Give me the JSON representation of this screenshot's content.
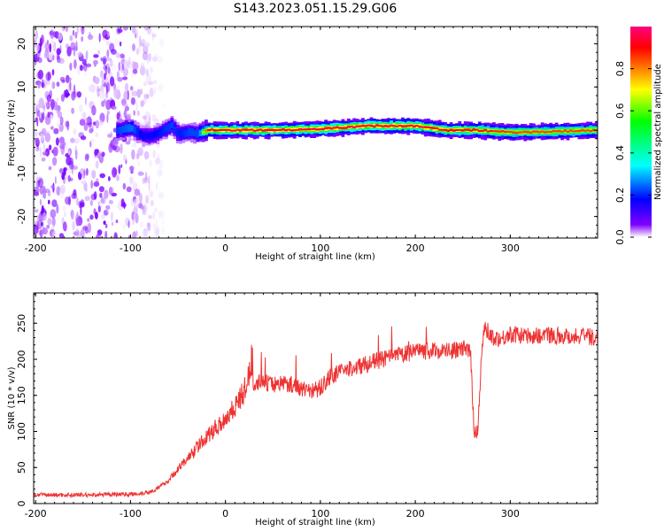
{
  "title": "S143.2023.051.15.29.G06",
  "chart_data": [
    {
      "type": "heatmap",
      "xlabel": "Height of straight line (km)",
      "ylabel": "Frequency (Hz)",
      "xlim": [
        -202,
        392
      ],
      "ylim": [
        -25,
        24
      ],
      "xticks": [
        -200,
        -100,
        0,
        100,
        200,
        300
      ],
      "yticks": [
        -20,
        -10,
        0,
        10,
        20
      ],
      "colorbar": {
        "label": "Normalized spectral amplitude",
        "range": [
          0,
          1
        ],
        "ticks": [
          "0.0",
          "0.2",
          "0.4",
          "0.6",
          "0.8"
        ],
        "colors": [
          "#ffffff",
          "#8000ff",
          "#0000ff",
          "#00ffff",
          "#00ff00",
          "#ffff00",
          "#ff8000",
          "#ff0000",
          "#ff0080"
        ]
      },
      "noise_region_km": [
        -200,
        -110
      ],
      "ridge": {
        "x_km": [
          -115,
          -100,
          -90,
          -80,
          -70,
          -58,
          -50,
          -40,
          -30,
          -20,
          0,
          50,
          100,
          150,
          200,
          230,
          260,
          300,
          350,
          392
        ],
        "freq_hz": [
          0.0,
          0.5,
          -1.2,
          -1.4,
          -0.5,
          1.0,
          -1.0,
          -0.5,
          -0.8,
          0.0,
          0.0,
          0.0,
          0.3,
          1.0,
          1.0,
          0.0,
          0.0,
          -0.5,
          -0.3,
          0.0
        ],
        "peak_amplitude": [
          0.4,
          0.45,
          0.3,
          0.3,
          0.35,
          0.4,
          0.35,
          0.4,
          0.4,
          0.9,
          0.95,
          0.95,
          0.95,
          0.95,
          0.95,
          0.9,
          0.9,
          0.85,
          0.85,
          0.85
        ]
      }
    },
    {
      "type": "line",
      "xlabel": "Height of straight line (km)",
      "ylabel": "SNR (10 * v/v)",
      "xlim": [
        -202,
        392
      ],
      "ylim": [
        0,
        292
      ],
      "xticks": [
        -200,
        -100,
        0,
        100,
        200,
        300
      ],
      "yticks": [
        0,
        50,
        100,
        150,
        200,
        250
      ],
      "color": "#ee3333",
      "series": [
        {
          "x": [
            -202,
            -180,
            -160,
            -140,
            -120,
            -100,
            -90,
            -80,
            -70,
            -60,
            -50,
            -40,
            -30,
            -20,
            -10,
            0,
            10,
            20,
            25,
            28,
            30,
            35,
            40,
            50,
            60,
            70,
            80,
            90,
            100,
            110,
            120,
            140,
            160,
            180,
            200,
            220,
            240,
            250,
            258,
            262,
            266,
            270,
            272,
            276,
            280,
            290,
            300,
            320,
            340,
            360,
            380,
            392
          ],
          "y": [
            12,
            12,
            12,
            12,
            13,
            13,
            14,
            16,
            22,
            32,
            48,
            62,
            78,
            92,
            105,
            118,
            135,
            155,
            180,
            200,
            168,
            168,
            168,
            165,
            168,
            165,
            160,
            156,
            160,
            175,
            182,
            190,
            198,
            205,
            210,
            212,
            212,
            215,
            210,
            100,
            105,
            210,
            240,
            240,
            232,
            228,
            235,
            232,
            234,
            232,
            232,
            230
          ]
        }
      ]
    }
  ]
}
